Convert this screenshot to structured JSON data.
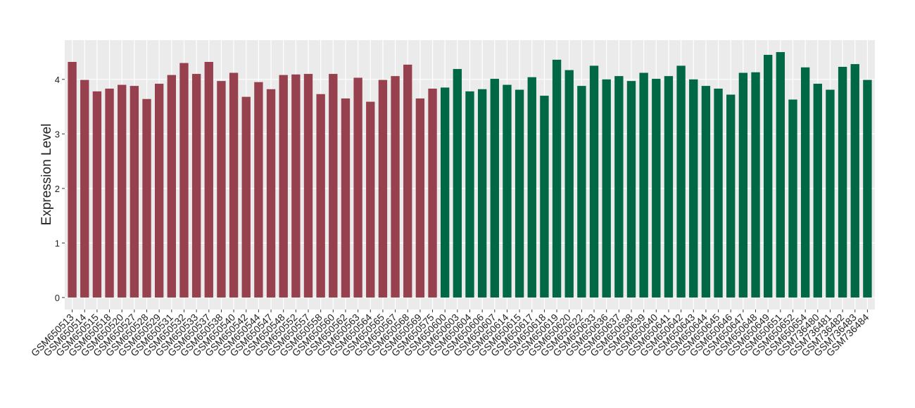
{
  "chart_data": {
    "type": "bar",
    "y_label": "Expression Level",
    "categories": [
      "GSM650513",
      "GSM650514",
      "GSM650515",
      "GSM650518",
      "GSM650520",
      "GSM650527",
      "GSM650528",
      "GSM650529",
      "GSM650531",
      "GSM650532",
      "GSM650533",
      "GSM650537",
      "GSM650538",
      "GSM650540",
      "GSM650542",
      "GSM650544",
      "GSM650547",
      "GSM650548",
      "GSM650552",
      "GSM650557",
      "GSM650558",
      "GSM650560",
      "GSM650562",
      "GSM650563",
      "GSM650564",
      "GSM650565",
      "GSM650567",
      "GSM650568",
      "GSM650569",
      "GSM650575",
      "GSM650600",
      "GSM650603",
      "GSM650604",
      "GSM650606",
      "GSM650607",
      "GSM650614",
      "GSM650615",
      "GSM650617",
      "GSM650618",
      "GSM650619",
      "GSM650620",
      "GSM650622",
      "GSM650633",
      "GSM650636",
      "GSM650637",
      "GSM650638",
      "GSM650639",
      "GSM650640",
      "GSM650641",
      "GSM650642",
      "GSM650643",
      "GSM650644",
      "GSM650645",
      "GSM650646",
      "GSM650647",
      "GSM650648",
      "GSM650649",
      "GSM650651",
      "GSM650652",
      "GSM650654",
      "GSM736480",
      "GSM736481",
      "GSM736482",
      "GSM736483",
      "GSM736484"
    ],
    "values": [
      4.32,
      3.99,
      3.78,
      3.83,
      3.9,
      3.88,
      3.64,
      3.92,
      4.08,
      4.3,
      4.1,
      4.32,
      3.97,
      4.12,
      3.68,
      3.95,
      3.82,
      4.08,
      4.09,
      4.1,
      3.73,
      4.1,
      3.65,
      4.03,
      3.59,
      3.99,
      4.06,
      4.27,
      3.65,
      3.83,
      3.85,
      4.19,
      3.78,
      3.82,
      4.01,
      3.9,
      3.81,
      4.04,
      3.7,
      4.36,
      4.17,
      3.88,
      4.25,
      4.0,
      4.06,
      3.97,
      4.12,
      4.01,
      4.06,
      4.25,
      4.0,
      3.88,
      3.83,
      3.72,
      4.12,
      4.13,
      4.45,
      4.5,
      3.63,
      4.22,
      3.92,
      3.81,
      4.23,
      4.28,
      3.99
    ],
    "colors": [
      "#97414f",
      "#97414f",
      "#97414f",
      "#97414f",
      "#97414f",
      "#97414f",
      "#97414f",
      "#97414f",
      "#97414f",
      "#97414f",
      "#97414f",
      "#97414f",
      "#97414f",
      "#97414f",
      "#97414f",
      "#97414f",
      "#97414f",
      "#97414f",
      "#97414f",
      "#97414f",
      "#97414f",
      "#97414f",
      "#97414f",
      "#97414f",
      "#97414f",
      "#97414f",
      "#97414f",
      "#97414f",
      "#97414f",
      "#97414f",
      "#006845",
      "#006845",
      "#006845",
      "#006845",
      "#006845",
      "#006845",
      "#006845",
      "#006845",
      "#006845",
      "#006845",
      "#006845",
      "#006845",
      "#006845",
      "#006845",
      "#006845",
      "#006845",
      "#006845",
      "#006845",
      "#006845",
      "#006845",
      "#006845",
      "#006845",
      "#006845",
      "#006845",
      "#006845",
      "#006845",
      "#006845",
      "#006845",
      "#006845",
      "#006845",
      "#006845",
      "#006845",
      "#006845",
      "#006845",
      "#006845"
    ],
    "ylim": [
      -0.22,
      4.72
    ],
    "yticks": [
      0,
      1,
      2,
      3,
      4
    ],
    "grid": true
  }
}
